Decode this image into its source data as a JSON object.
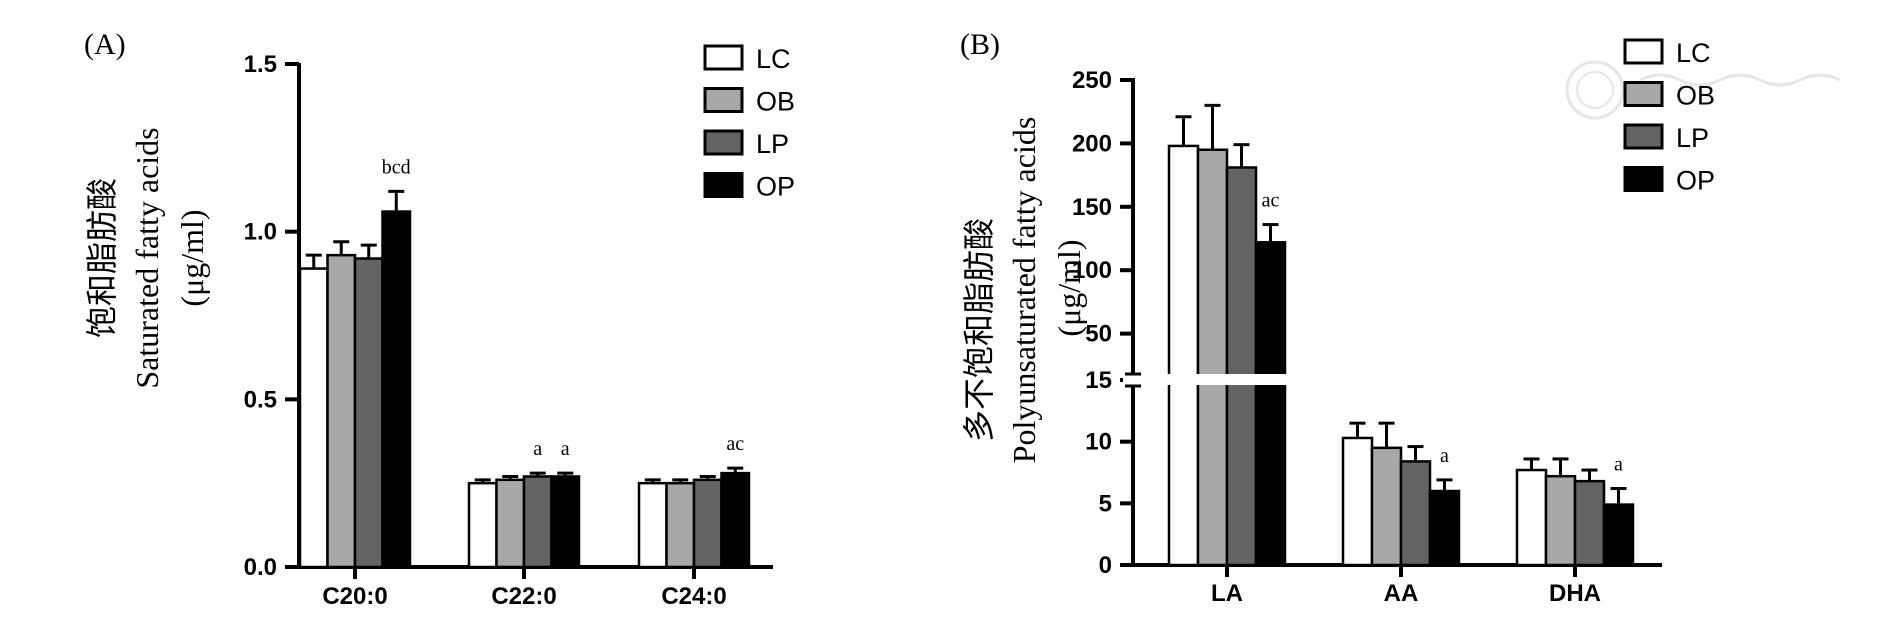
{
  "panels": [
    {
      "panel_label": "(A)",
      "ylabel_lines": [
        "饱和脂肪酸",
        "Saturated fatty acids",
        "(μg/ml)"
      ],
      "legend": [
        "LC",
        "OB",
        "LP",
        "OP"
      ]
    },
    {
      "panel_label": "(B)",
      "ylabel_lines": [
        "多不饱和脂肪酸",
        "Polyunsaturated fatty acids",
        "(μg/ml)"
      ],
      "legend": [
        "LC",
        "OB",
        "LP",
        "OP"
      ]
    }
  ],
  "colors": {
    "LC": "#ffffff",
    "OB": "#a8a8a8",
    "LP": "#636363",
    "OP": "#000000",
    "axis": "#000000"
  },
  "chart_data": [
    {
      "type": "bar",
      "categories": [
        "C20:0",
        "C22:0",
        "C24:0"
      ],
      "series": [
        {
          "name": "LC",
          "values": [
            0.89,
            0.25,
            0.25
          ],
          "errors": [
            0.04,
            0.01,
            0.01
          ]
        },
        {
          "name": "OB",
          "values": [
            0.93,
            0.26,
            0.25
          ],
          "errors": [
            0.04,
            0.01,
            0.01
          ]
        },
        {
          "name": "LP",
          "values": [
            0.92,
            0.27,
            0.26
          ],
          "errors": [
            0.04,
            0.01,
            0.01
          ]
        },
        {
          "name": "OP",
          "values": [
            1.06,
            0.27,
            0.28
          ],
          "errors": [
            0.06,
            0.01,
            0.015
          ]
        }
      ],
      "annotations": [
        {
          "category": "C20:0",
          "series": "OP",
          "text": "bcd"
        },
        {
          "category": "C22:0",
          "series": "LP",
          "text": "a"
        },
        {
          "category": "C22:0",
          "series": "OP",
          "text": "a"
        },
        {
          "category": "C24:0",
          "series": "OP",
          "text": "ac"
        }
      ],
      "ylim": [
        0,
        1.5
      ],
      "yticks": [
        0.0,
        0.5,
        1.0,
        1.5
      ],
      "ytick_labels": [
        "0.0",
        "0.5",
        "1.0",
        "1.5"
      ],
      "legend_position": "top-right",
      "grid": false
    },
    {
      "type": "bar",
      "categories": [
        "LA",
        "AA",
        "DHA"
      ],
      "series": [
        {
          "name": "LC",
          "values": [
            198,
            10.3,
            7.7
          ],
          "errors": [
            23,
            1.2,
            0.9
          ]
        },
        {
          "name": "OB",
          "values": [
            195,
            9.5,
            7.2
          ],
          "errors": [
            35,
            2.0,
            1.4
          ]
        },
        {
          "name": "LP",
          "values": [
            181,
            8.4,
            6.8
          ],
          "errors": [
            18,
            1.2,
            0.9
          ]
        },
        {
          "name": "OP",
          "values": [
            122,
            6.0,
            4.9
          ],
          "errors": [
            14,
            0.9,
            1.3
          ]
        }
      ],
      "annotations": [
        {
          "category": "LA",
          "series": "OP",
          "text": "ac"
        },
        {
          "category": "AA",
          "series": "OP",
          "text": "a"
        },
        {
          "category": "DHA",
          "series": "OP",
          "text": "a"
        }
      ],
      "broken_axis": {
        "lower": [
          0,
          15
        ],
        "upper": [
          15,
          250
        ]
      },
      "yticks_lower": [
        0,
        5,
        10,
        15
      ],
      "ytick_labels_lower": [
        "0",
        "5",
        "10",
        "15"
      ],
      "yticks_upper": [
        50,
        100,
        150,
        200,
        250
      ],
      "ytick_labels_upper": [
        "50",
        "100",
        "150",
        "200",
        "250"
      ],
      "legend_position": "top-right",
      "grid": false
    }
  ]
}
